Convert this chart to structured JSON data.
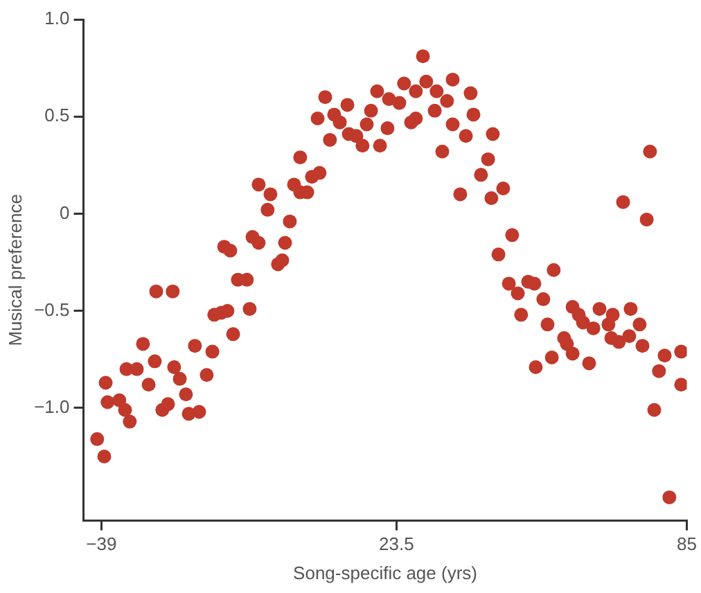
{
  "chart_data": {
    "type": "scatter",
    "xlabel": "Song-specific age (yrs)",
    "ylabel": "Musical preference",
    "marker": "circle",
    "grid": false,
    "legend": false,
    "xlim": [
      -42.8,
      85
    ],
    "ylim": [
      -1.58,
      1.0
    ],
    "xticks": [
      {
        "value": -39,
        "label": "−39"
      },
      23.5,
      85
    ],
    "yticks": [
      {
        "value": 1.0,
        "label": "1.0"
      },
      0.5,
      0,
      {
        "value": -0.5,
        "label": "−0.5"
      },
      {
        "value": -1.0,
        "label": "−1.0"
      }
    ],
    "series": [
      {
        "color": "#c0392b",
        "x": [
          -39.9,
          -38.4,
          -38.1,
          -37.7,
          -35.2,
          -34.0,
          -33.0,
          -33.7,
          -31.5,
          -30.2,
          -29.0,
          -27.7,
          -27.4,
          -23.9,
          -26.1,
          -24.9,
          -23.6,
          -22.4,
          -21.1,
          -20.5,
          -18.3,
          -19.2,
          -16.7,
          -15.5,
          -15.1,
          -13.6,
          -12.3,
          -11.1,
          -10.1,
          -8.2,
          -7.6,
          -1.6,
          -0.7,
          -13.0,
          -11.7,
          -7.0,
          -5.7,
          -0.1,
          -3.8,
          0.9,
          -5.7,
          -3.2,
          1.8,
          3.1,
          4.6,
          5.6,
          7.2,
          3.1,
          8.4,
          13.1,
          6.8,
          10.3,
          11.5,
          9.4,
          13.4,
          15.0,
          16.3,
          17.2,
          18.1,
          19.4,
          21.6,
          20.0,
          21.9,
          29.1,
          25.1,
          29.8,
          35.4,
          27.6,
          32.0,
          24.1,
          34.2,
          39.2,
          31.6,
          39.8,
          26.6,
          27.6,
          35.4,
          38.2,
          43.9,
          33.2,
          42.9,
          41.4,
          37.0,
          43.6,
          46.1,
          48.0,
          45.1,
          56.8,
          77.2,
          71.5,
          76.5,
          47.3,
          49.2,
          51.4,
          52.7,
          54.6,
          49.9,
          55.5,
          60.8,
          62.1,
          63.0,
          66.5,
          69.3,
          65.2,
          68.4,
          73.1,
          75.0,
          59.0,
          59.6,
          69.0,
          70.6,
          72.8,
          75.6,
          60.8,
          56.4,
          53.0,
          64.3,
          80.3,
          83.8,
          79.1,
          83.8,
          78.1,
          81.3
        ],
        "values": [
          -1.16,
          -1.25,
          -0.87,
          -0.97,
          -0.96,
          -1.01,
          -1.07,
          -0.8,
          -0.8,
          -0.67,
          -0.88,
          -0.76,
          -0.4,
          -0.4,
          -1.01,
          -0.98,
          -0.79,
          -0.85,
          -0.93,
          -1.03,
          -1.02,
          -0.68,
          -0.83,
          -0.71,
          -0.52,
          -0.51,
          -0.5,
          -0.62,
          -0.34,
          -0.34,
          -0.49,
          -0.26,
          -0.24,
          -0.17,
          -0.19,
          -0.12,
          -0.15,
          -0.15,
          0.02,
          -0.04,
          0.15,
          0.1,
          0.15,
          0.11,
          0.11,
          0.19,
          0.21,
          0.29,
          0.6,
          0.56,
          0.49,
          0.51,
          0.47,
          0.38,
          0.41,
          0.4,
          0.35,
          0.46,
          0.53,
          0.63,
          0.44,
          0.35,
          0.59,
          0.81,
          0.67,
          0.68,
          0.69,
          0.63,
          0.63,
          0.57,
          0.58,
          0.62,
          0.53,
          0.51,
          0.47,
          0.49,
          0.46,
          0.4,
          0.41,
          0.32,
          0.28,
          0.2,
          0.1,
          0.08,
          0.13,
          -0.11,
          -0.21,
          -0.29,
          0.32,
          0.06,
          -0.03,
          -0.36,
          -0.41,
          -0.35,
          -0.36,
          -0.44,
          -0.52,
          -0.57,
          -0.48,
          -0.52,
          -0.56,
          -0.49,
          -0.52,
          -0.59,
          -0.57,
          -0.49,
          -0.57,
          -0.64,
          -0.67,
          -0.64,
          -0.66,
          -0.63,
          -0.68,
          -0.72,
          -0.74,
          -0.79,
          -0.77,
          -0.73,
          -0.71,
          -0.81,
          -0.88,
          -1.01,
          -1.46
        ]
      }
    ]
  }
}
